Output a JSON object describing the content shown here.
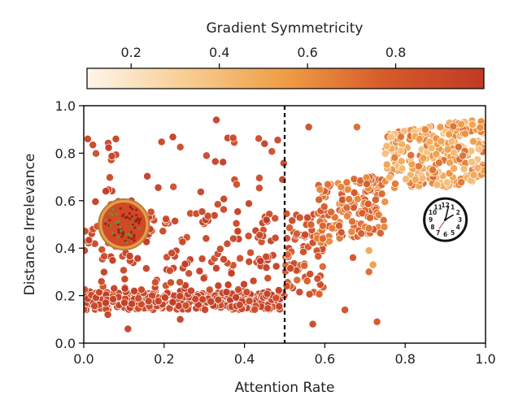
{
  "chart_data": {
    "type": "scatter",
    "xlabel": "Attention Rate",
    "ylabel": "Distance Irrelevance",
    "xlim": [
      0.0,
      1.0
    ],
    "ylim": [
      0.0,
      1.0
    ],
    "xticks": [
      "0.0",
      "0.2",
      "0.4",
      "0.6",
      "0.8",
      "1.0"
    ],
    "yticks": [
      "0.0",
      "0.2",
      "0.4",
      "0.6",
      "0.8",
      "1.0"
    ],
    "grid": false,
    "threshold_line": {
      "x": 0.5,
      "style": "dashed",
      "color": "#000000"
    },
    "colorbar": {
      "label": "Gradient Symmetricity",
      "range": [
        0.1,
        1.0
      ],
      "ticks": [
        "0.2",
        "0.4",
        "0.6",
        "0.8"
      ],
      "colors": [
        "#fdf6ea",
        "#f8cd93",
        "#ef9d45",
        "#d65b2a",
        "#c13a24"
      ]
    },
    "annotations": [
      {
        "name": "pizza-icon",
        "x": 0.1,
        "y": 0.5
      },
      {
        "name": "clock-icon",
        "x": 0.9,
        "y": 0.52
      }
    ],
    "clusters": [
      {
        "x": [
          0.0,
          0.5
        ],
        "y": [
          0.14,
          0.22
        ],
        "count": 340,
        "c": [
          0.86,
          1.0
        ]
      },
      {
        "x": [
          0.0,
          0.55
        ],
        "y": [
          0.22,
          0.55
        ],
        "count": 170,
        "c": [
          0.84,
          1.0
        ]
      },
      {
        "x": [
          0.0,
          0.5
        ],
        "y": [
          0.55,
          0.88
        ],
        "count": 45,
        "c": [
          0.85,
          1.0
        ]
      },
      {
        "x": [
          0.5,
          0.6
        ],
        "y": [
          0.2,
          0.55
        ],
        "count": 60,
        "c": [
          0.7,
          0.92
        ]
      },
      {
        "x": [
          0.58,
          0.75
        ],
        "y": [
          0.45,
          0.7
        ],
        "count": 150,
        "c": [
          0.55,
          0.8
        ]
      },
      {
        "x": [
          0.75,
          1.0
        ],
        "y": [
          0.65,
          0.92
        ],
        "count": 260,
        "c": [
          0.3,
          0.7
        ]
      }
    ],
    "outliers": [
      {
        "x": 0.01,
        "y": 0.86,
        "c": 0.95
      },
      {
        "x": 0.08,
        "y": 0.86,
        "c": 0.95
      },
      {
        "x": 0.33,
        "y": 0.94,
        "c": 0.95
      },
      {
        "x": 0.45,
        "y": 0.84,
        "c": 0.95
      },
      {
        "x": 0.56,
        "y": 0.91,
        "c": 0.85
      },
      {
        "x": 0.68,
        "y": 0.91,
        "c": 0.7
      },
      {
        "x": 0.06,
        "y": 0.12,
        "c": 0.95
      },
      {
        "x": 0.11,
        "y": 0.06,
        "c": 0.95
      },
      {
        "x": 0.24,
        "y": 0.1,
        "c": 0.95
      },
      {
        "x": 0.57,
        "y": 0.08,
        "c": 0.9
      },
      {
        "x": 0.73,
        "y": 0.09,
        "c": 0.8
      },
      {
        "x": 0.65,
        "y": 0.14,
        "c": 0.85
      },
      {
        "x": 0.67,
        "y": 0.36,
        "c": 0.8
      },
      {
        "x": 0.71,
        "y": 0.3,
        "c": 0.7
      },
      {
        "x": 0.72,
        "y": 0.33,
        "c": 0.5
      },
      {
        "x": 0.71,
        "y": 0.39,
        "c": 0.45
      }
    ]
  }
}
